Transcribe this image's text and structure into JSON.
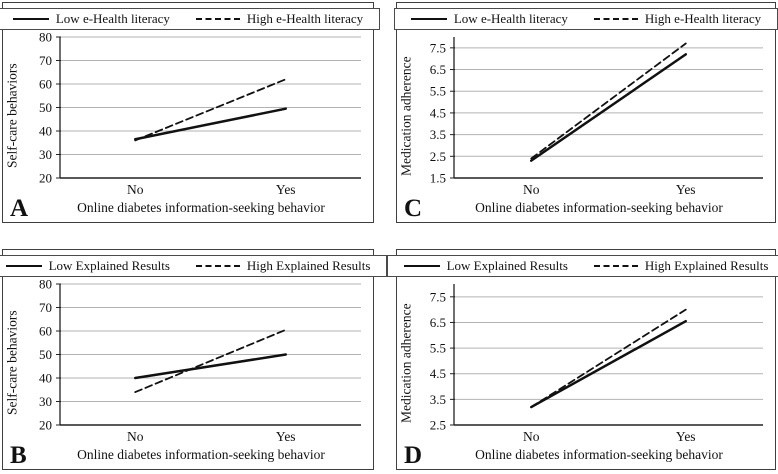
{
  "figure": {
    "background": "#ffffff",
    "line_color": "#111111",
    "grid_color": "#b3b3b3",
    "axis_color": "#222222",
    "panel_letters": [
      "A",
      "C",
      "B",
      "D"
    ]
  },
  "chart_data": [
    {
      "type": "line",
      "letter": "A",
      "categories": [
        "No",
        "Yes"
      ],
      "series": [
        {
          "name": "Low e-Health literacy",
          "style": "solid",
          "values": [
            36.5,
            49.5
          ]
        },
        {
          "name": "High e-Health literacy",
          "style": "dashed",
          "values": [
            36,
            62
          ]
        }
      ],
      "xlabel": "Online diabetes information-seeking behavior",
      "ylabel": "Self-care behaviors",
      "ylim": [
        20,
        80
      ],
      "yticks": [
        20,
        30,
        40,
        50,
        60,
        70,
        80
      ],
      "grid": true,
      "legend_position": "top"
    },
    {
      "type": "line",
      "letter": "C",
      "categories": [
        "No",
        "Yes"
      ],
      "series": [
        {
          "name": "Low e-Health literacy",
          "style": "solid",
          "values": [
            2.3,
            7.2
          ]
        },
        {
          "name": "High e-Health literacy",
          "style": "dashed",
          "values": [
            2.4,
            7.7
          ]
        }
      ],
      "xlabel": "Online diabetes information-seeking behavior",
      "ylabel": "Medication adherence",
      "ylim": [
        1.5,
        8.0
      ],
      "yticks": [
        1.5,
        2.5,
        3.5,
        4.5,
        5.5,
        6.5,
        7.5
      ],
      "grid": true,
      "legend_position": "top"
    },
    {
      "type": "line",
      "letter": "B",
      "categories": [
        "No",
        "Yes"
      ],
      "series": [
        {
          "name": "Low Explained Results",
          "style": "solid",
          "values": [
            40,
            50
          ]
        },
        {
          "name": "High Explained Results",
          "style": "dashed",
          "values": [
            34,
            60.5
          ]
        }
      ],
      "xlabel": "Online diabetes information-seeking behavior",
      "ylabel": "Self-care behaviors",
      "ylim": [
        20,
        80
      ],
      "yticks": [
        20,
        30,
        40,
        50,
        60,
        70,
        80
      ],
      "grid": true,
      "legend_position": "top"
    },
    {
      "type": "line",
      "letter": "D",
      "categories": [
        "No",
        "Yes"
      ],
      "series": [
        {
          "name": "Low Explained Results",
          "style": "solid",
          "values": [
            3.2,
            6.55
          ]
        },
        {
          "name": "High Explained Results",
          "style": "dashed",
          "values": [
            3.2,
            7.0
          ]
        }
      ],
      "xlabel": "Online diabetes information-seeking behavior",
      "ylabel": "Medication adherence",
      "ylim": [
        2.5,
        8.0
      ],
      "yticks": [
        2.5,
        3.5,
        4.5,
        5.5,
        6.5,
        7.5
      ],
      "grid": true,
      "legend_position": "top"
    }
  ]
}
